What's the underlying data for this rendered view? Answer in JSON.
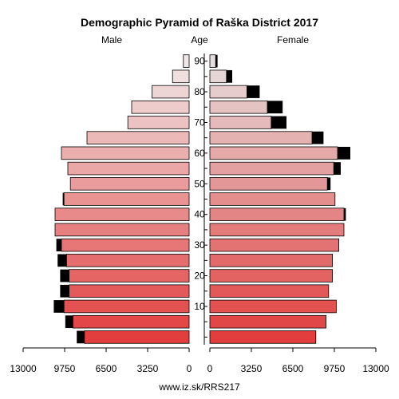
{
  "chart_data": {
    "type": "bar",
    "title": "Demographic Pyramid of Raška District 2017",
    "left_label": "Male",
    "center_label": "Age",
    "right_label": "Female",
    "footer": "www.iz.sk/RRS217",
    "axis": {
      "max": 13000,
      "ticks": [
        0,
        3250,
        6500,
        9750,
        13000
      ]
    },
    "age_ticks": [
      10,
      20,
      30,
      40,
      50,
      60,
      70,
      80,
      90
    ],
    "age_groups": [
      "0-4",
      "5-9",
      "10-14",
      "15-19",
      "20-24",
      "25-29",
      "30-34",
      "35-39",
      "40-44",
      "45-49",
      "50-54",
      "55-59",
      "60-64",
      "65-69",
      "70-74",
      "75-79",
      "80-84",
      "85-89",
      "90+"
    ],
    "series": [
      {
        "name": "Male",
        "values": [
          8200,
          9100,
          9800,
          9400,
          9400,
          9600,
          10000,
          10500,
          10500,
          9800,
          9300,
          9500,
          10000,
          8000,
          4800,
          4500,
          2900,
          1300,
          450
        ],
        "excess": [
          600,
          600,
          800,
          700,
          700,
          700,
          400,
          0,
          0,
          100,
          0,
          0,
          0,
          0,
          0,
          0,
          0,
          0,
          0
        ]
      },
      {
        "name": "Female",
        "values": [
          8300,
          9100,
          9900,
          9300,
          9600,
          9600,
          10100,
          10500,
          10500,
          9800,
          9200,
          9700,
          10000,
          8000,
          4800,
          4500,
          2900,
          1300,
          450
        ],
        "excess": [
          0,
          0,
          0,
          0,
          0,
          0,
          0,
          0,
          150,
          0,
          250,
          550,
          1000,
          900,
          1200,
          1200,
          1000,
          450,
          150
        ]
      }
    ]
  }
}
